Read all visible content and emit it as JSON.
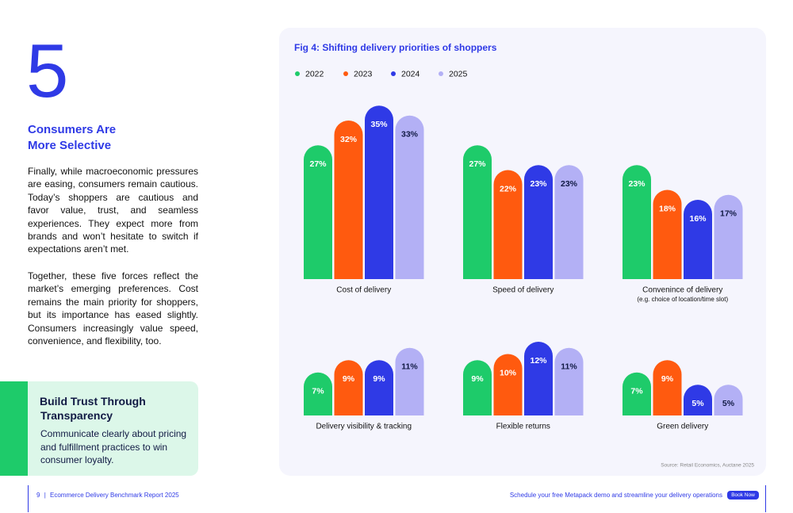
{
  "section": {
    "number": "5",
    "heading": [
      "Consumers Are",
      "More Selective"
    ],
    "paragraphs": [
      "Finally, while macroeconomic pressures are easing, consumers remain cautious. Today’s shoppers are cautious and favor value, trust, and seamless experiences. They expect more from brands and won’t hesitate to switch if expectations aren’t met.",
      "Together, these five forces reflect the market’s emerging preferences. Cost remains the main priority for shoppers, but its importance has eased slightly. Consumers increasingly value speed, convenience, and flexibility, too."
    ]
  },
  "callout": {
    "title": [
      "Build Trust Through",
      "Transparency"
    ],
    "body": "Communicate clearly about pricing and fulfillment practices to win consumer loyalty."
  },
  "figure": {
    "title": "Fig 4: Shifting delivery priorities of shoppers",
    "legend": [
      {
        "name": "2022",
        "color": "#1ecb6a"
      },
      {
        "name": "2023",
        "color": "#ff5a0f"
      },
      {
        "name": "2024",
        "color": "#2f3ae6"
      },
      {
        "name": "2025",
        "color": "#b3b0f5"
      }
    ],
    "category_note": "(e.g. choice of location/time slot)",
    "source": "Source: Retail Economics, Auctane 2025"
  },
  "chart_data": [
    {
      "type": "bar",
      "categories": [
        "Cost of delivery",
        "Speed of delivery",
        "Convenince of delivery"
      ],
      "ylim": [
        0,
        36
      ],
      "series": [
        {
          "values": [
            27,
            27,
            23
          ],
          "value_labels": [
            "27%",
            "27%",
            "23%"
          ]
        },
        {
          "values": [
            32,
            22,
            18
          ],
          "value_labels": [
            "32%",
            "22%",
            "18%"
          ]
        },
        {
          "values": [
            35,
            23,
            16
          ],
          "value_labels": [
            "35%",
            "23%",
            "16%"
          ]
        },
        {
          "values": [
            33,
            23,
            17
          ],
          "value_labels": [
            "33%",
            "23%",
            "17%"
          ]
        }
      ]
    },
    {
      "type": "bar",
      "categories": [
        "Delivery visibility & tracking",
        "Flexible returns",
        "Green delivery"
      ],
      "ylim": [
        0,
        13
      ],
      "series": [
        {
          "values": [
            7,
            9,
            7
          ],
          "value_labels": [
            "7%",
            "9%",
            "7%"
          ]
        },
        {
          "values": [
            9,
            10,
            9
          ],
          "value_labels": [
            "9%",
            "10%",
            "9%"
          ]
        },
        {
          "values": [
            9,
            12,
            5
          ],
          "value_labels": [
            "9%",
            "12%",
            "5%"
          ]
        },
        {
          "values": [
            11,
            11,
            5
          ],
          "value_labels": [
            "11%",
            "11%",
            "5%"
          ]
        }
      ]
    }
  ],
  "footer": {
    "page": "9",
    "separator": "|",
    "report": "Ecommerce Delivery Benchmark Report 2025",
    "cta": "Schedule your free Metapack demo and streamline your delivery operations",
    "button": "Book Now"
  }
}
